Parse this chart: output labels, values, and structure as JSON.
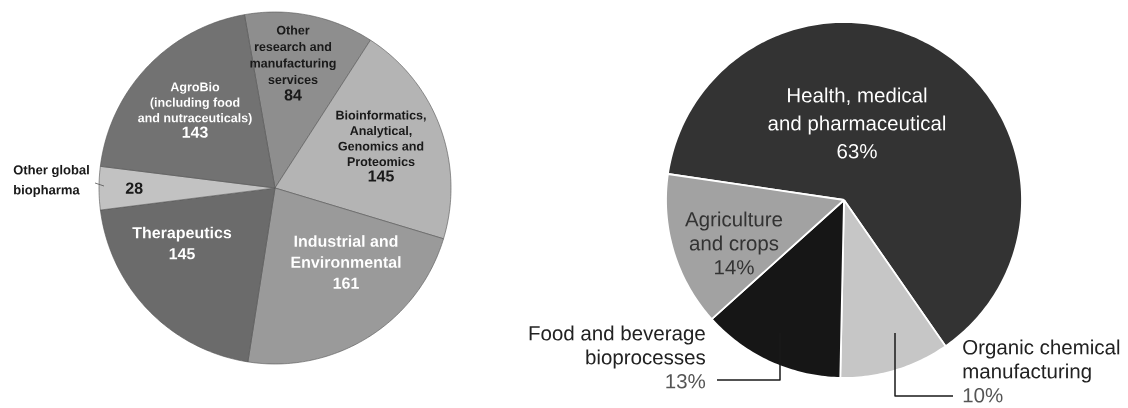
{
  "chart_data": [
    {
      "type": "pie",
      "categories": [
        "Other research and manufacturing services",
        "Bioinformatics, Analytical, Genomics and Proteomics",
        "Industrial and Environmental",
        "Therapeutics",
        "Other global biopharma",
        "AgroBio (including food and nutraceuticals)"
      ],
      "values": [
        84,
        145,
        161,
        145,
        28,
        143
      ],
      "colors": [
        "#8e8e8e",
        "#b4b4b4",
        "#9a9a9a",
        "#6b6b6b",
        "#c2c2c2",
        "#727272"
      ],
      "data_labels": true
    },
    {
      "type": "pie",
      "categories": [
        "Health, medical and pharmaceutical",
        "Organic chemical manufacturing",
        "Food and beverage bioprocesses",
        "Agriculture and crops"
      ],
      "values": [
        63,
        10,
        13,
        14
      ],
      "colors": [
        "#333333",
        "#c6c6c6",
        "#161616",
        "#a2a2a2"
      ],
      "value_labels": [
        "63%",
        "10%",
        "13%",
        "14%"
      ]
    }
  ]
}
